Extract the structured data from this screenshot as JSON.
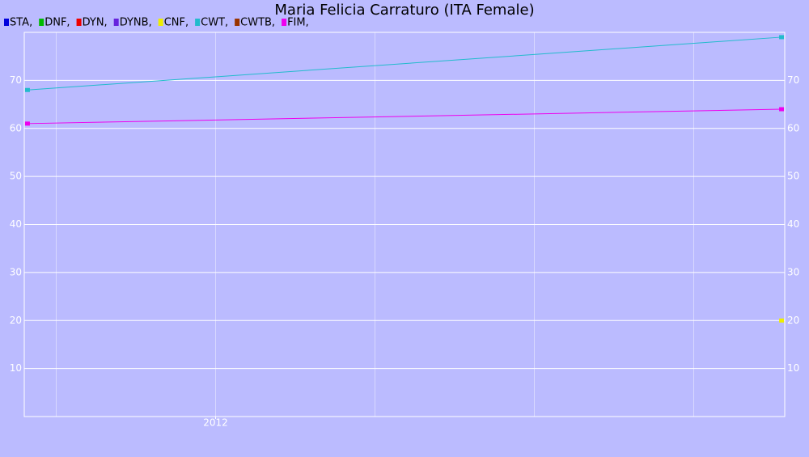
{
  "chart_data": {
    "type": "line",
    "title": "Maria Felicia Carraturo (ITA Female)",
    "x": [
      2010.82,
      2015.55
    ],
    "xlim": [
      2010.8,
      2015.57
    ],
    "xticks": [
      2012
    ],
    "xgrid": [
      2011,
      2012,
      2013,
      2014,
      2015
    ],
    "ylim": [
      0,
      80
    ],
    "yticks": [
      10,
      20,
      30,
      40,
      50,
      60,
      70
    ],
    "grid": true,
    "right_axis_labels": true,
    "legend": "top-left",
    "series": [
      {
        "name": "STA,",
        "color": "#0000dd",
        "values": [
          null,
          null
        ]
      },
      {
        "name": "DNF,",
        "color": "#00bb00",
        "values": [
          null,
          null
        ]
      },
      {
        "name": "DYN,",
        "color": "#ee0000",
        "values": [
          null,
          null
        ]
      },
      {
        "name": "DYNB,",
        "color": "#6622dd",
        "values": [
          null,
          null
        ]
      },
      {
        "name": "CNF,",
        "color": "#eeee00",
        "values": [
          null,
          20
        ]
      },
      {
        "name": "CWT,",
        "color": "#22bbcc",
        "values": [
          68,
          79
        ]
      },
      {
        "name": "CWTB,",
        "color": "#993300",
        "values": [
          null,
          null
        ]
      },
      {
        "name": "FIM,",
        "color": "#ee00ee",
        "values": [
          61,
          64
        ]
      }
    ]
  }
}
